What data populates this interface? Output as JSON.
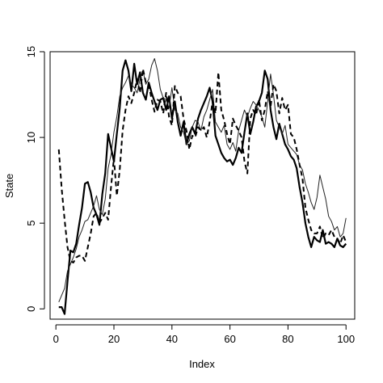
{
  "chart_data": {
    "type": "line",
    "title": "",
    "xlabel": "Index",
    "ylabel": "State",
    "xlim": [
      -2,
      103
    ],
    "ylim": [
      -0.6,
      15
    ],
    "xticks": [
      0,
      20,
      40,
      60,
      80,
      100
    ],
    "yticks": [
      0,
      5,
      10,
      15
    ],
    "grid": false,
    "legend": "none",
    "x": [
      1,
      2,
      3,
      4,
      5,
      6,
      7,
      8,
      9,
      10,
      11,
      12,
      13,
      14,
      15,
      16,
      17,
      18,
      19,
      20,
      21,
      22,
      23,
      24,
      25,
      26,
      27,
      28,
      29,
      30,
      31,
      32,
      33,
      34,
      35,
      36,
      37,
      38,
      39,
      40,
      41,
      42,
      43,
      44,
      45,
      46,
      47,
      48,
      49,
      50,
      51,
      52,
      53,
      54,
      55,
      56,
      57,
      58,
      59,
      60,
      61,
      62,
      63,
      64,
      65,
      66,
      67,
      68,
      69,
      70,
      71,
      72,
      73,
      74,
      75,
      76,
      77,
      78,
      79,
      80,
      81,
      82,
      83,
      84,
      85,
      86,
      87,
      88,
      89,
      90,
      91,
      92,
      93,
      94,
      95,
      96,
      97,
      98,
      99,
      100
    ],
    "series": [
      {
        "style": "thick-solid",
        "color": "#000000",
        "values": [
          0.1,
          0.1,
          -0.3,
          1.6,
          3.4,
          3.3,
          3.8,
          4.9,
          5.9,
          7.3,
          7.4,
          6.8,
          5.9,
          5.5,
          4.9,
          6.7,
          7.9,
          10.2,
          9.4,
          8.6,
          10.2,
          11.7,
          13.9,
          14.5,
          13.9,
          12.7,
          14.3,
          13.1,
          13.8,
          12.6,
          12.2,
          13.2,
          12.6,
          12.1,
          11.6,
          12.2,
          12.3,
          11.6,
          12.4,
          11.1,
          12.1,
          10.9,
          10.1,
          10.9,
          9.6,
          10.2,
          10.6,
          10.2,
          11.1,
          11.6,
          12.0,
          12.4,
          12.9,
          12.1,
          10.1,
          9.6,
          9.1,
          8.8,
          8.6,
          8.7,
          8.4,
          8.8,
          9.4,
          9.1,
          10.3,
          11.4,
          10.2,
          10.9,
          11.8,
          12.1,
          12.6,
          13.9,
          13.4,
          11.6,
          10.6,
          9.9,
          10.8,
          10.2,
          9.6,
          9.3,
          8.9,
          8.7,
          8.2,
          7.1,
          6.2,
          5.0,
          4.2,
          3.6,
          4.2,
          4.0,
          3.9,
          4.6,
          3.8,
          3.9,
          3.8,
          3.6,
          4.1,
          3.7,
          3.6,
          3.8
        ]
      },
      {
        "style": "thin-solid",
        "color": "#222222",
        "values": [
          0.4,
          0.8,
          1.2,
          2.2,
          2.6,
          3.0,
          3.5,
          4.2,
          4.6,
          5.1,
          5.2,
          5.6,
          6.0,
          6.6,
          5.8,
          5.5,
          6.4,
          8.2,
          9.0,
          10.3,
          11.2,
          12.4,
          12.9,
          13.2,
          13.6,
          13.1,
          12.9,
          12.6,
          13.4,
          13.9,
          13.1,
          13.4,
          14.2,
          14.6,
          13.9,
          12.8,
          12.3,
          12.2,
          11.7,
          12.9,
          11.6,
          11.4,
          10.6,
          10.3,
          9.6,
          9.8,
          10.6,
          11.0,
          10.9,
          10.4,
          11.2,
          11.6,
          12.2,
          12.8,
          10.9,
          10.6,
          10.3,
          10.7,
          9.6,
          9.3,
          9.7,
          9.2,
          10.4,
          11.0,
          11.6,
          11.2,
          11.7,
          12.1,
          11.9,
          11.6,
          11.2,
          10.6,
          12.1,
          13.7,
          12.5,
          11.0,
          10.6,
          10.2,
          10.7,
          9.6,
          9.4,
          9.2,
          9.0,
          8.4,
          8.1,
          7.3,
          6.8,
          6.2,
          5.8,
          6.5,
          7.8,
          7.1,
          6.4,
          5.4,
          5.1,
          4.6,
          4.8,
          4.2,
          4.4,
          5.3
        ]
      },
      {
        "style": "dashed",
        "color": "#000000",
        "values": [
          9.3,
          7.0,
          5.2,
          3.6,
          2.8,
          2.7,
          3.0,
          3.1,
          3.1,
          2.8,
          3.6,
          4.4,
          5.4,
          5.6,
          5.0,
          5.3,
          5.6,
          5.2,
          7.1,
          8.8,
          6.6,
          8.1,
          10.4,
          11.6,
          12.4,
          12.0,
          12.6,
          13.4,
          12.6,
          14.0,
          13.2,
          13.1,
          12.2,
          11.5,
          12.2,
          12.1,
          11.4,
          12.6,
          11.2,
          10.7,
          13.0,
          12.6,
          12.4,
          11.1,
          10.4,
          9.3,
          10.1,
          10.0,
          10.6,
          10.4,
          10.6,
          10.0,
          10.9,
          12.1,
          11.4,
          13.8,
          11.6,
          11.0,
          10.2,
          9.6,
          11.1,
          10.7,
          10.4,
          10.0,
          8.6,
          7.9,
          11.1,
          11.6,
          11.3,
          12.2,
          11.0,
          11.6,
          12.7,
          11.8,
          13.1,
          12.7,
          11.4,
          12.3,
          11.6,
          11.9,
          10.2,
          10.0,
          9.3,
          8.4,
          7.6,
          5.9,
          5.2,
          4.6,
          4.4,
          4.4,
          4.8,
          4.1,
          4.4,
          4.3,
          4.6,
          4.2,
          4.1,
          3.8,
          4.3,
          3.9
        ]
      }
    ]
  }
}
